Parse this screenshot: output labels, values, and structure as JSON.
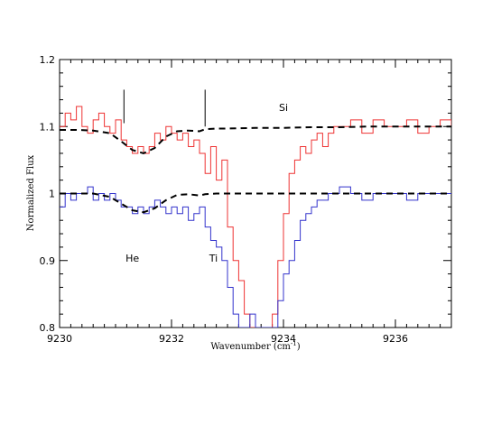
{
  "chart_data": {
    "type": "line",
    "title": "",
    "xlabel": "Wavenumber (cm",
    "xlabel_sup": "-1",
    "xlabel_close": ")",
    "ylabel": "Normalized Flux",
    "xlim": [
      9230,
      9237
    ],
    "ylim": [
      0.8,
      1.2
    ],
    "x_ticks": [
      9230,
      9232,
      9234,
      9236
    ],
    "x_tick_labels": [
      "9230",
      "9232",
      "9234",
      "9236"
    ],
    "y_ticks": [
      0.8,
      0.9,
      1.0,
      1.1,
      1.2
    ],
    "y_tick_labels": [
      "0.8",
      "0.9",
      "1",
      "1.1",
      "1.2"
    ],
    "grid": false,
    "colors": {
      "red": "#ee3333",
      "blue": "#3333cc",
      "model": "#000000"
    },
    "series": [
      {
        "color": "red",
        "style": "step",
        "x": [
          9230.0,
          9230.1,
          9230.2,
          9230.3,
          9230.4,
          9230.5,
          9230.6,
          9230.7,
          9230.8,
          9230.9,
          9231.0,
          9231.1,
          9231.2,
          9231.3,
          9231.4,
          9231.5,
          9231.6,
          9231.7,
          9231.8,
          9231.9,
          9232.0,
          9232.1,
          9232.2,
          9232.3,
          9232.4,
          9232.5,
          9232.6,
          9232.7,
          9232.8,
          9232.9,
          9233.0,
          9233.1,
          9233.2,
          9233.3,
          9233.4,
          9233.5,
          9233.6,
          9233.7,
          9233.8,
          9233.9,
          9234.0,
          9234.1,
          9234.2,
          9234.3,
          9234.4,
          9234.5,
          9234.6,
          9234.7,
          9234.8,
          9234.9,
          9235.0,
          9235.2,
          9235.4,
          9235.6,
          9235.8,
          9236.0,
          9236.2,
          9236.4,
          9236.6,
          9236.8,
          9237.0
        ],
        "y": [
          1.1,
          1.12,
          1.11,
          1.13,
          1.1,
          1.09,
          1.11,
          1.12,
          1.1,
          1.09,
          1.11,
          1.08,
          1.07,
          1.06,
          1.07,
          1.06,
          1.07,
          1.09,
          1.08,
          1.1,
          1.09,
          1.08,
          1.09,
          1.07,
          1.08,
          1.06,
          1.03,
          1.07,
          1.02,
          1.05,
          0.95,
          0.9,
          0.87,
          0.82,
          0.8,
          0.8,
          0.8,
          0.8,
          0.82,
          0.9,
          0.97,
          1.03,
          1.05,
          1.07,
          1.06,
          1.08,
          1.09,
          1.07,
          1.09,
          1.1,
          1.1,
          1.11,
          1.09,
          1.11,
          1.1,
          1.1,
          1.11,
          1.09,
          1.1,
          1.11,
          1.1
        ]
      },
      {
        "color": "blue",
        "style": "step",
        "x": [
          9230.0,
          9230.1,
          9230.2,
          9230.3,
          9230.4,
          9230.5,
          9230.6,
          9230.7,
          9230.8,
          9230.9,
          9231.0,
          9231.1,
          9231.2,
          9231.3,
          9231.4,
          9231.5,
          9231.6,
          9231.7,
          9231.8,
          9231.9,
          9232.0,
          9232.1,
          9232.2,
          9232.3,
          9232.4,
          9232.5,
          9232.6,
          9232.7,
          9232.8,
          9232.9,
          9233.0,
          9233.1,
          9233.2,
          9233.3,
          9233.4,
          9233.5,
          9233.6,
          9233.7,
          9233.8,
          9233.9,
          9234.0,
          9234.1,
          9234.2,
          9234.3,
          9234.4,
          9234.5,
          9234.6,
          9234.7,
          9234.8,
          9234.9,
          9235.0,
          9235.2,
          9235.4,
          9235.6,
          9235.8,
          9236.0,
          9236.2,
          9236.4,
          9236.6,
          9236.8,
          9237.0
        ],
        "y": [
          0.98,
          1.0,
          0.99,
          1.0,
          1.0,
          1.01,
          0.99,
          1.0,
          0.99,
          1.0,
          0.99,
          0.98,
          0.98,
          0.97,
          0.98,
          0.97,
          0.98,
          0.99,
          0.98,
          0.97,
          0.98,
          0.97,
          0.98,
          0.96,
          0.97,
          0.98,
          0.95,
          0.93,
          0.92,
          0.9,
          0.86,
          0.82,
          0.8,
          0.8,
          0.82,
          0.8,
          0.8,
          0.8,
          0.8,
          0.84,
          0.88,
          0.9,
          0.93,
          0.96,
          0.97,
          0.98,
          0.99,
          0.99,
          1.0,
          1.0,
          1.01,
          1.0,
          0.99,
          1.0,
          1.0,
          1.0,
          0.99,
          1.0,
          1.0,
          1.0,
          1.0
        ]
      },
      {
        "color": "model",
        "style": "dashed",
        "x": [
          9230.0,
          9230.3,
          9230.6,
          9230.9,
          9231.1,
          9231.3,
          9231.5,
          9231.7,
          9231.9,
          9232.1,
          9232.3,
          9232.5,
          9232.6,
          9232.8,
          9233.0,
          9233.5,
          9234.0,
          9234.5,
          9235.0,
          9235.5,
          9236.0,
          9236.5,
          9237.0
        ],
        "y": [
          1.095,
          1.095,
          1.094,
          1.09,
          1.078,
          1.065,
          1.06,
          1.068,
          1.085,
          1.093,
          1.094,
          1.093,
          1.096,
          1.097,
          1.097,
          1.098,
          1.098,
          1.099,
          1.099,
          1.1,
          1.1,
          1.1,
          1.1
        ]
      },
      {
        "color": "model",
        "style": "dashed",
        "x": [
          9230.0,
          9230.3,
          9230.6,
          9230.9,
          9231.1,
          9231.3,
          9231.5,
          9231.7,
          9231.9,
          9232.1,
          9232.3,
          9232.5,
          9232.6,
          9232.8,
          9233.0,
          9233.5,
          9234.0,
          9234.5,
          9235.0,
          9235.5,
          9236.0,
          9236.5,
          9237.0
        ],
        "y": [
          1.0,
          1.0,
          1.0,
          0.995,
          0.985,
          0.975,
          0.972,
          0.978,
          0.99,
          0.998,
          0.999,
          0.997,
          0.999,
          1.0,
          1.0,
          1.0,
          1.0,
          1.0,
          1.0,
          1.0,
          1.0,
          1.0,
          1.0
        ]
      }
    ],
    "markers": [
      {
        "x": 9231.15,
        "y_from": 1.105,
        "y_to": 1.155
      },
      {
        "x": 9232.6,
        "y_from": 1.1,
        "y_to": 1.155
      }
    ],
    "annotations": [
      {
        "text": "Si",
        "x": 9234.0,
        "y": 1.123
      },
      {
        "text": "He",
        "x": 9231.3,
        "y": 0.898
      },
      {
        "text": "Ti",
        "x": 9232.75,
        "y": 0.898
      }
    ]
  }
}
